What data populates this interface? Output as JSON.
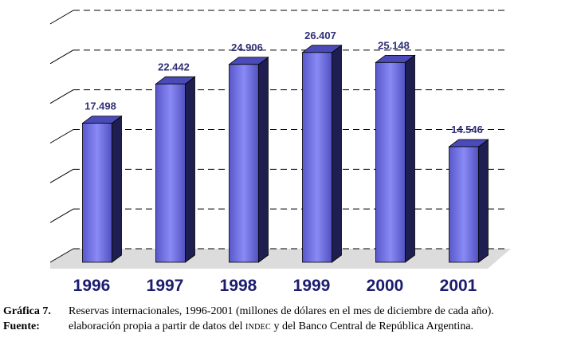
{
  "chart_data": {
    "type": "bar",
    "categories": [
      "1996",
      "1997",
      "1998",
      "1999",
      "2000",
      "2001"
    ],
    "values": [
      17498,
      22442,
      24906,
      26407,
      25148,
      14546
    ],
    "value_labels": [
      "17.498",
      "22.442",
      "24.906",
      "26.407",
      "25.148",
      "14.546"
    ],
    "ylim": [
      0,
      30000
    ],
    "grid": true,
    "colors": {
      "bar_front": "#7070e8",
      "bar_side": "#1e1e50",
      "bar_top": "#4a4ab8",
      "value_label": "#303078",
      "category_label": "#1c1c6e",
      "floor": "#dcdcdc"
    }
  },
  "caption": {
    "figure_label": "Gráfica 7.",
    "figure_text": "Reservas internacionales, 1996-2001 (millones de dólares en el mes de diciembre de cada año).",
    "source_label": "Fuente:",
    "source_text_before": "elaboración propia a partir de datos del ",
    "source_text_smallcaps": "INDEC",
    "source_text_after": " y del Banco Central de República Argentina."
  }
}
